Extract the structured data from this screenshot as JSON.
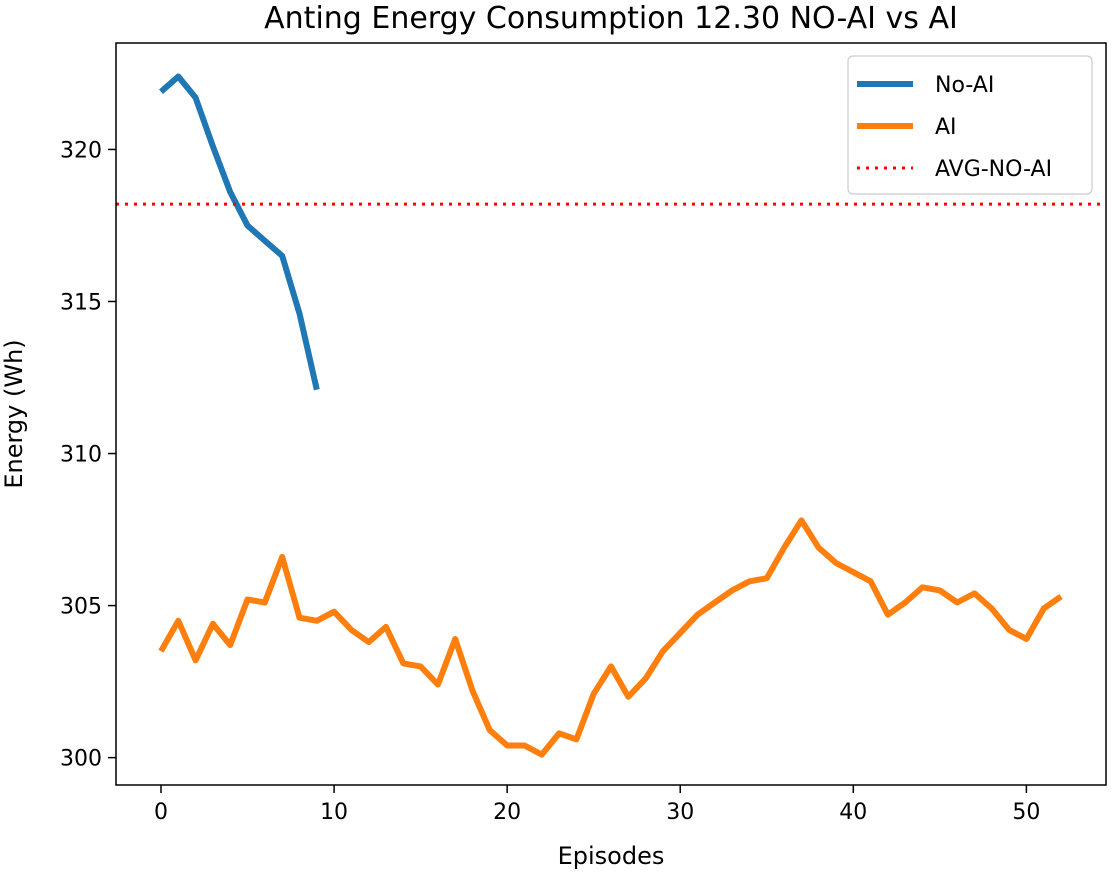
{
  "chart_data": {
    "type": "line",
    "title": "Anting Energy Consumption 12.30 NO-AI vs AI",
    "xlabel": "Episodes",
    "ylabel": "Energy (Wh)",
    "xlim": [
      -2.6,
      54.6
    ],
    "ylim": [
      299.1,
      323.5
    ],
    "xticks": [
      0,
      10,
      20,
      30,
      40,
      50
    ],
    "yticks": [
      300,
      305,
      310,
      315,
      320
    ],
    "legend_position": "top-right",
    "series": [
      {
        "name": "No-AI",
        "color": "#1f77b4",
        "style": "solid",
        "x": [
          0,
          1,
          2,
          3,
          4,
          5,
          6,
          7,
          8,
          9
        ],
        "y": [
          321.9,
          322.4,
          321.7,
          320.1,
          318.6,
          317.5,
          317.0,
          316.5,
          314.6,
          312.1
        ]
      },
      {
        "name": "AI",
        "color": "#ff7f0e",
        "style": "solid",
        "x": [
          0,
          1,
          2,
          3,
          4,
          5,
          6,
          7,
          8,
          9,
          10,
          11,
          12,
          13,
          14,
          15,
          16,
          17,
          18,
          19,
          20,
          21,
          22,
          23,
          24,
          25,
          26,
          27,
          28,
          29,
          30,
          31,
          32,
          33,
          34,
          35,
          36,
          37,
          38,
          39,
          40,
          41,
          42,
          43,
          44,
          45,
          46,
          47,
          48,
          49,
          50,
          51,
          52
        ],
        "y": [
          303.5,
          304.5,
          303.2,
          304.4,
          303.7,
          305.2,
          305.1,
          306.6,
          304.6,
          304.5,
          304.8,
          304.2,
          303.8,
          304.3,
          303.1,
          303.0,
          302.4,
          303.9,
          302.2,
          300.9,
          300.4,
          300.4,
          300.1,
          300.8,
          300.6,
          302.1,
          303.0,
          302.0,
          302.6,
          303.5,
          304.1,
          304.7,
          305.1,
          305.5,
          305.8,
          305.9,
          306.9,
          307.8,
          306.9,
          306.4,
          306.1,
          305.8,
          304.7,
          305.1,
          305.6,
          305.5,
          305.1,
          305.4,
          304.9,
          304.2,
          303.9,
          304.9,
          305.3
        ]
      },
      {
        "name": "AVG-NO-AI",
        "color": "#ff0000",
        "style": "dotted",
        "y": 318.2
      }
    ]
  }
}
